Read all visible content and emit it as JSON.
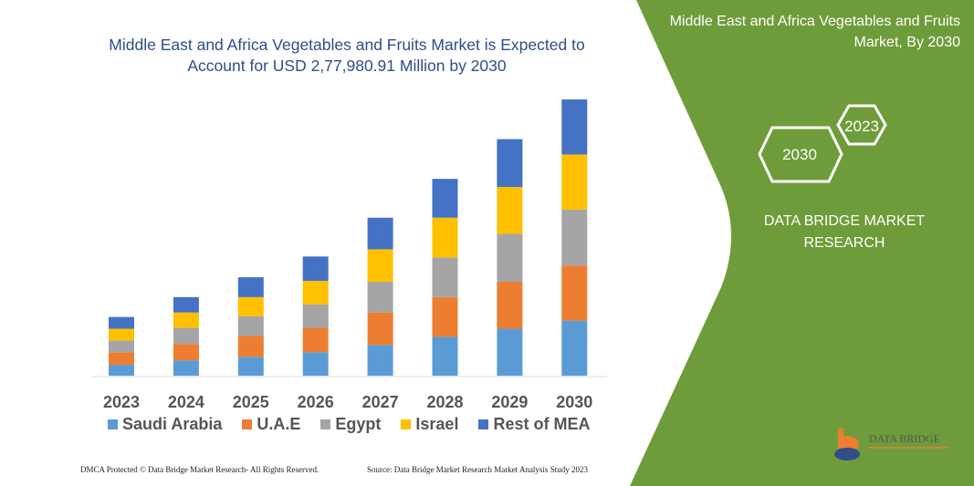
{
  "title": "Middle East and Africa Vegetables and Fruits Market is Expected to Account for USD 2,77,980.91 Million by 2030",
  "panel": {
    "title": "Middle East and Africa Vegetables and Fruits Market, By 2030",
    "hex_years": [
      "2023",
      "2030"
    ],
    "brand": "DATA BRIDGE MARKET RESEARCH",
    "logo_text": "DATA BRIDGE",
    "color": "#6f9c3a"
  },
  "footer": {
    "left": "DMCA Protected © Data Bridge Market Research- All Rights Reserved.",
    "right": "Source: Data Bridge Market Research Market Analysis Study 2023"
  },
  "chart_data": {
    "type": "bar",
    "stacked": true,
    "categories": [
      "2023",
      "2024",
      "2025",
      "2026",
      "2027",
      "2028",
      "2029",
      "2030"
    ],
    "series": [
      {
        "name": "Saudi Arabia",
        "color": "#5b9bd5",
        "values": [
          12,
          17,
          21,
          26,
          34,
          43,
          52,
          61
        ]
      },
      {
        "name": "U.A.E",
        "color": "#ed7d31",
        "values": [
          14,
          18,
          23,
          27,
          36,
          44,
          52,
          61
        ]
      },
      {
        "name": "Egypt",
        "color": "#a5a5a5",
        "values": [
          13,
          18,
          22,
          26,
          34,
          44,
          53,
          62
        ]
      },
      {
        "name": "Israel",
        "color": "#ffc000",
        "values": [
          13,
          17,
          21,
          26,
          36,
          44,
          52,
          61
        ]
      },
      {
        "name": "Rest of MEA",
        "color": "#4472c4",
        "values": [
          13,
          17,
          22,
          27,
          35,
          43,
          53,
          61
        ]
      }
    ],
    "legend": "bottom",
    "grid": false,
    "y_axis_shown": false
  }
}
